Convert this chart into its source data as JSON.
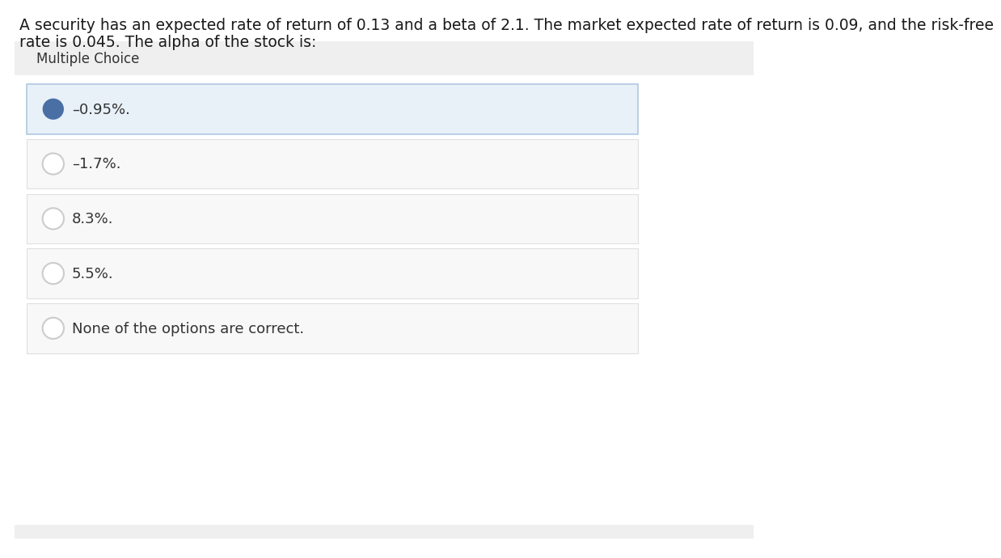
{
  "question_line1": "A security has an expected rate of return of 0.13 and a beta of 2.1. The market expected rate of return is 0.09, and the risk-free",
  "question_line2": "rate is 0.045. The alpha of the stock is:",
  "section_label": "Multiple Choice",
  "choices": [
    {
      "text": "–0.95%.",
      "selected": true
    },
    {
      "text": "–1.7%.",
      "selected": false
    },
    {
      "text": "8.3%.",
      "selected": false
    },
    {
      "text": "5.5%.",
      "selected": false
    },
    {
      "text": "None of the options are correct.",
      "selected": false
    }
  ],
  "bg_color": "#ffffff",
  "section_bg": "#efefef",
  "choice_bg_selected": "#e8f0f8",
  "choice_bg_unselected": "#f8f8f8",
  "choice_border_selected": "#b0c8e0",
  "choice_border_unselected": "#e0e0e0",
  "selected_circle_color": "#4a6fa5",
  "unselected_circle_edge": "#cccccc",
  "text_color": "#333333",
  "question_font_size": 13.5,
  "section_font_size": 12,
  "choice_font_size": 13,
  "question_text_color": "#1a1a1a"
}
